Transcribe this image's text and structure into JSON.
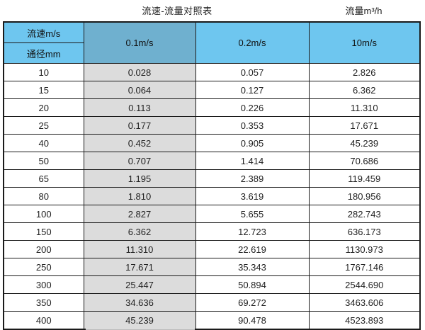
{
  "page": {
    "title": "流速-流量对照表",
    "unit_label": "流量m³/h"
  },
  "colors": {
    "header_blue": "#6EC6EF",
    "highlight_blue": "#6FB0CF",
    "shaded_gray": "#DCDCDC",
    "border_dark": "#1A1A1A"
  },
  "chart_data": {
    "type": "table",
    "title": "流速-流量对照表",
    "value_unit": "流量m³/h",
    "corner_labels": [
      "流速m/s",
      "通径mm"
    ],
    "velocity_columns": [
      "0.1m/s",
      "0.2m/s",
      "10m/s"
    ],
    "highlighted_column": "0.1m/s",
    "diameters_mm": [
      "10",
      "15",
      "20",
      "25",
      "40",
      "50",
      "65",
      "80",
      "100",
      "150",
      "200",
      "250",
      "300",
      "350",
      "400"
    ],
    "flow_rows": [
      [
        "0.028",
        "0.057",
        "2.826"
      ],
      [
        "0.064",
        "0.127",
        "6.362"
      ],
      [
        "0.113",
        "0.226",
        "11.310"
      ],
      [
        "0.177",
        "0.353",
        "17.671"
      ],
      [
        "0.452",
        "0.905",
        "45.239"
      ],
      [
        "0.707",
        "1.414",
        "70.686"
      ],
      [
        "1.195",
        "2.389",
        "119.459"
      ],
      [
        "1.810",
        "3.619",
        "180.956"
      ],
      [
        "2.827",
        "5.655",
        "282.743"
      ],
      [
        "6.362",
        "12.723",
        "636.173"
      ],
      [
        "11.310",
        "22.619",
        "1130.973"
      ],
      [
        "17.671",
        "35.343",
        "1767.146"
      ],
      [
        "25.447",
        "50.894",
        "2544.690"
      ],
      [
        "34.636",
        "69.272",
        "3463.606"
      ],
      [
        "45.239",
        "90.478",
        "4523.893"
      ]
    ]
  }
}
